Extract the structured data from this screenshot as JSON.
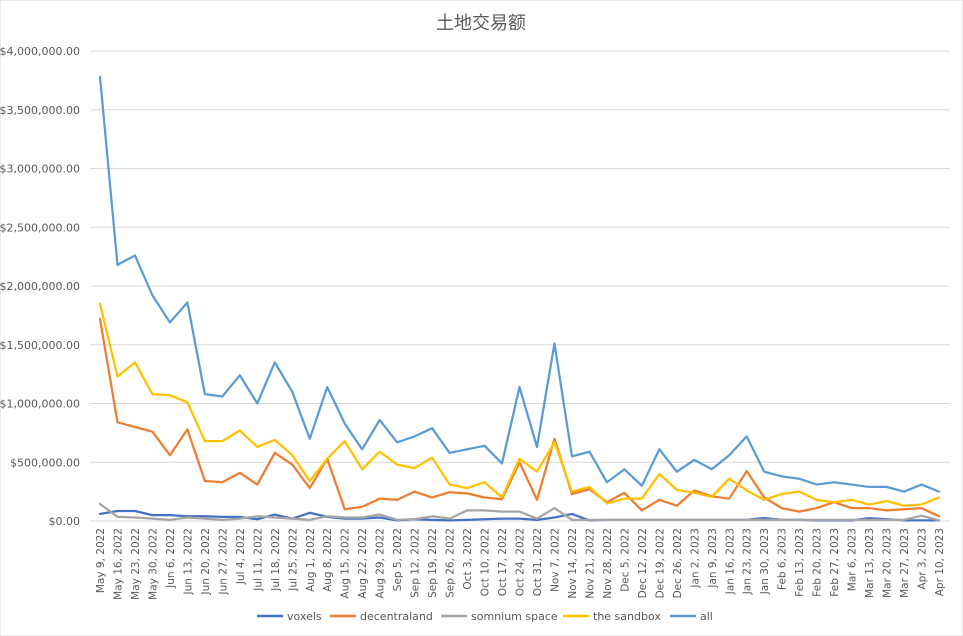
{
  "chart_data": {
    "type": "line",
    "title": "土地交易额",
    "xlabel": "",
    "ylabel": "",
    "ylim": [
      0,
      4000000
    ],
    "yticks": [
      "$0.00",
      "$500,000.00",
      "$1,000,000.00",
      "$1,500,000.00",
      "$2,000,000.00",
      "$2,500,000.00",
      "$3,000,000.00",
      "$3,500,000.00",
      "$4,000,000.00"
    ],
    "ytick_values": [
      0,
      500000,
      1000000,
      1500000,
      2000000,
      2500000,
      3000000,
      3500000,
      4000000
    ],
    "grid": true,
    "legend_position": "bottom",
    "categories": [
      "May 9, 2022",
      "May 16, 2022",
      "May 23, 2022",
      "May 30, 2022",
      "Jun 6, 2022",
      "Jun 13, 2022",
      "Jun 20, 2022",
      "Jun 27, 2022",
      "Jul 4, 2022",
      "Jul 11, 2022",
      "Jul 18, 2022",
      "Jul 25, 2022",
      "Aug 1, 2022",
      "Aug 8, 2022",
      "Aug 15, 2022",
      "Aug 22, 2022",
      "Aug 29, 2022",
      "Sep 5, 2022",
      "Sep 12, 2022",
      "Sep 19, 2022",
      "Sep 26, 2022",
      "Oct 3, 2022",
      "Oct 10, 2022",
      "Oct 17, 2022",
      "Oct 24, 2022",
      "Oct 31, 2022",
      "Nov 7, 2022",
      "Nov 14, 2022",
      "Nov 21, 2022",
      "Nov 28, 2022",
      "Dec 5, 2022",
      "Dec 12, 2022",
      "Dec 19, 2022",
      "Dec 26, 2022",
      "Jan 2, 2023",
      "Jan 9, 2023",
      "Jan 16, 2023",
      "Jan 23, 2023",
      "Jan 30, 2023",
      "Feb 6, 2023",
      "Feb 13, 2023",
      "Feb 20, 2023",
      "Feb 27, 2023",
      "Mar 6, 2023",
      "Mar 13, 2023",
      "Mar 20, 2023",
      "Mar 27, 2023",
      "Apr 3, 2023",
      "Apr 10, 2023"
    ],
    "series": [
      {
        "name": "voxels",
        "color": "#4472c4",
        "values": [
          60000,
          85000,
          85000,
          50000,
          50000,
          40000,
          40000,
          35000,
          35000,
          15000,
          55000,
          20000,
          70000,
          35000,
          20000,
          20000,
          30000,
          5000,
          15000,
          10000,
          5000,
          10000,
          15000,
          20000,
          20000,
          10000,
          30000,
          60000,
          5000,
          10000,
          10000,
          10000,
          10000,
          10000,
          10000,
          10000,
          10000,
          10000,
          25000,
          10000,
          10000,
          5000,
          5000,
          5000,
          25000,
          15000,
          5000,
          5000,
          5000
        ]
      },
      {
        "name": "decentraland",
        "color": "#ed7d31",
        "values": [
          1720000,
          840000,
          800000,
          760000,
          560000,
          780000,
          340000,
          330000,
          410000,
          310000,
          580000,
          480000,
          280000,
          530000,
          100000,
          120000,
          190000,
          180000,
          250000,
          200000,
          245000,
          235000,
          200000,
          185000,
          500000,
          180000,
          700000,
          230000,
          270000,
          160000,
          240000,
          90000,
          180000,
          130000,
          260000,
          210000,
          190000,
          425000,
          200000,
          110000,
          80000,
          110000,
          160000,
          110000,
          110000,
          90000,
          100000,
          110000,
          40000
        ]
      },
      {
        "name": "somnium space",
        "color": "#a5a5a5",
        "values": [
          145000,
          35000,
          30000,
          20000,
          10000,
          30000,
          20000,
          10000,
          20000,
          40000,
          30000,
          20000,
          10000,
          40000,
          30000,
          30000,
          55000,
          10000,
          15000,
          40000,
          20000,
          90000,
          90000,
          80000,
          80000,
          20000,
          110000,
          10000,
          10000,
          10000,
          10000,
          10000,
          10000,
          10000,
          10000,
          10000,
          10000,
          10000,
          10000,
          10000,
          10000,
          10000,
          10000,
          10000,
          10000,
          10000,
          10000,
          45000,
          5000
        ]
      },
      {
        "name": "the sandbox",
        "color": "#ffc000",
        "values": [
          1850000,
          1230000,
          1350000,
          1080000,
          1070000,
          1010000,
          680000,
          680000,
          770000,
          630000,
          690000,
          560000,
          340000,
          530000,
          680000,
          440000,
          590000,
          480000,
          450000,
          540000,
          310000,
          280000,
          330000,
          200000,
          530000,
          420000,
          670000,
          250000,
          290000,
          150000,
          190000,
          190000,
          400000,
          265000,
          240000,
          205000,
          360000,
          260000,
          180000,
          230000,
          250000,
          180000,
          160000,
          180000,
          140000,
          170000,
          130000,
          140000,
          200000
        ]
      },
      {
        "name": "all",
        "color": "#5b9bd5",
        "values": [
          3780000,
          2180000,
          2260000,
          1920000,
          1690000,
          1860000,
          1080000,
          1060000,
          1240000,
          1000000,
          1350000,
          1100000,
          700000,
          1140000,
          830000,
          610000,
          860000,
          670000,
          720000,
          790000,
          580000,
          610000,
          640000,
          490000,
          1140000,
          630000,
          1510000,
          550000,
          590000,
          330000,
          440000,
          300000,
          610000,
          420000,
          520000,
          440000,
          560000,
          720000,
          420000,
          380000,
          360000,
          310000,
          330000,
          310000,
          290000,
          290000,
          250000,
          310000,
          250000
        ]
      }
    ]
  }
}
